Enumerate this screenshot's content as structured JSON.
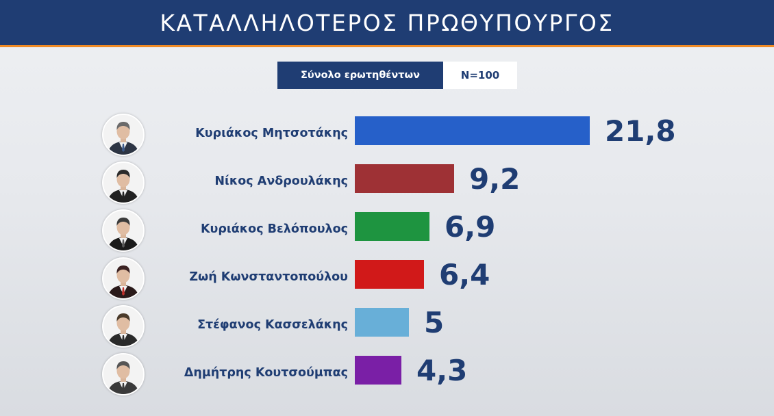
{
  "header": {
    "title": "ΚΑΤΑΛΛΗΛΟΤΕΡΟΣ ΠΡΩΘΥΠΟΥΡΓΟΣ"
  },
  "subheader": {
    "label": "Σύνολο ερωτηθέντων",
    "sample": "N=100"
  },
  "colors": {
    "header_bg": "#1f3d73",
    "accent": "#f08a24",
    "text": "#1f3d73"
  },
  "chart_data": {
    "type": "bar",
    "orientation": "horizontal",
    "title": "ΚΑΤΑΛΛΗΛΟΤΕΡΟΣ ΠΡΩΘΥΠΟΥΡΓΟΣ",
    "categories": [
      "Κυριάκος Μητσοτάκης",
      "Νίκος Ανδρουλάκης",
      "Κυριάκος Βελόπουλος",
      "Ζωή Κωνσταντοπούλου",
      "Στέφανος Κασσελάκης",
      "Δημήτρης Κουτσούμπας"
    ],
    "values": [
      21.8,
      9.2,
      6.9,
      6.4,
      5,
      4.3
    ],
    "value_labels": [
      "21,8",
      "9,2",
      "6,9",
      "6,4",
      "5",
      "4,3"
    ],
    "bar_colors": [
      "#2660c9",
      "#9e3135",
      "#1e9440",
      "#d11919",
      "#68afd8",
      "#7a1fa6"
    ],
    "xlabel": "",
    "ylabel": "",
    "grid": false,
    "legend": "none"
  },
  "avatars": [
    {
      "icon": "person-avatar-icon",
      "hair": "#6a6a6a",
      "suit": "#2d3544",
      "tie": "#3c5b8c"
    },
    {
      "icon": "person-avatar-icon",
      "hair": "#2b2b2b",
      "suit": "#222222",
      "tie": "#222222"
    },
    {
      "icon": "person-avatar-icon",
      "hair": "#3a3a3a",
      "suit": "#1b1b1b",
      "tie": "#5a5a5a"
    },
    {
      "icon": "person-avatar-icon",
      "hair": "#3b2222",
      "suit": "#2a1a1a",
      "tie": "#c0302b"
    },
    {
      "icon": "person-avatar-icon",
      "hair": "#4a3a2a",
      "suit": "#2a2a2a",
      "tie": "#2a2a2a"
    },
    {
      "icon": "person-avatar-icon",
      "hair": "#555555",
      "suit": "#3a3a3a",
      "tie": "#3a3a3a"
    }
  ]
}
